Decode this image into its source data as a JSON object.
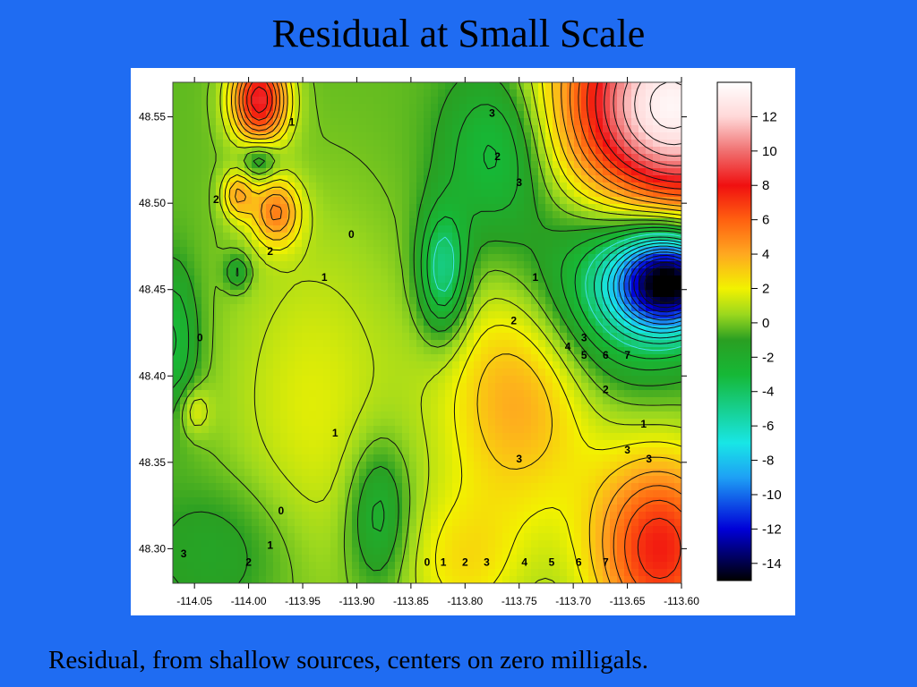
{
  "slide": {
    "title": "Residual at Small Scale",
    "caption": "Residual, from shallow sources, centers on zero milligals."
  },
  "chart_data": {
    "type": "heatmap",
    "title": "",
    "xlabel": "",
    "ylabel": "",
    "xlim": [
      -114.07,
      -113.6
    ],
    "ylim": [
      48.28,
      48.57
    ],
    "x_ticks": [
      -114.05,
      -114.0,
      -113.95,
      -113.9,
      -113.85,
      -113.8,
      -113.75,
      -113.7,
      -113.65,
      -113.6
    ],
    "x_tick_labels": [
      "-114.05",
      "-114.00",
      "-113.95",
      "-113.90",
      "-113.85",
      "-113.80",
      "-113.75",
      "-113.70",
      "-113.65",
      "-113.60"
    ],
    "y_ticks": [
      48.3,
      48.35,
      48.4,
      48.45,
      48.5,
      48.55
    ],
    "y_tick_labels": [
      "48.30",
      "48.35",
      "48.40",
      "48.45",
      "48.50",
      "48.55"
    ],
    "colorbar": {
      "min": -15,
      "max": 14,
      "ticks": [
        12,
        10,
        8,
        6,
        4,
        2,
        0,
        -2,
        -4,
        -6,
        -8,
        -10,
        -12,
        -14
      ],
      "tick_labels": [
        "12",
        "10",
        "8",
        "6",
        "4",
        "2",
        "0",
        "-2",
        "-4",
        "-6",
        "-8",
        "-10",
        "-12",
        "-14"
      ],
      "colors": [
        {
          "v": -15,
          "c": "#000000"
        },
        {
          "v": -12,
          "c": "#0000d8"
        },
        {
          "v": -9,
          "c": "#1ea0f5"
        },
        {
          "v": -7,
          "c": "#18e6e6"
        },
        {
          "v": -3,
          "c": "#16b836"
        },
        {
          "v": -1,
          "c": "#2a9f22"
        },
        {
          "v": 0.5,
          "c": "#9cd81e"
        },
        {
          "v": 2,
          "c": "#f2f200"
        },
        {
          "v": 4,
          "c": "#ffa820"
        },
        {
          "v": 6,
          "c": "#ff6010"
        },
        {
          "v": 8,
          "c": "#f01010"
        },
        {
          "v": 10,
          "c": "#f07070"
        },
        {
          "v": 12,
          "c": "#ffd8d8"
        },
        {
          "v": 14,
          "c": "#ffffff"
        }
      ]
    },
    "anomalies": [
      {
        "x": -113.99,
        "y": 48.56,
        "value": 9,
        "rx": 0.018,
        "ry": 0.018
      },
      {
        "x": -113.975,
        "y": 48.495,
        "value": 5,
        "rx": 0.016,
        "ry": 0.014
      },
      {
        "x": -114.01,
        "y": 48.505,
        "value": 4,
        "rx": 0.01,
        "ry": 0.01
      },
      {
        "x": -113.99,
        "y": 48.525,
        "value": -3,
        "rx": 0.012,
        "ry": 0.008
      },
      {
        "x": -114.01,
        "y": 48.46,
        "value": -2.5,
        "rx": 0.008,
        "ry": 0.007
      },
      {
        "x": -113.77,
        "y": 48.53,
        "value": -3.5,
        "rx": 0.034,
        "ry": 0.034
      },
      {
        "x": -113.61,
        "y": 48.555,
        "value": 14,
        "rx": 0.07,
        "ry": 0.05
      },
      {
        "x": -113.61,
        "y": 48.455,
        "value": -14,
        "rx": 0.035,
        "ry": 0.02
      },
      {
        "x": -113.66,
        "y": 48.455,
        "value": -5,
        "rx": 0.06,
        "ry": 0.04
      },
      {
        "x": -113.75,
        "y": 48.39,
        "value": 4.5,
        "rx": 0.05,
        "ry": 0.05
      },
      {
        "x": -113.62,
        "y": 48.3,
        "value": 8,
        "rx": 0.045,
        "ry": 0.04
      },
      {
        "x": -113.82,
        "y": 48.46,
        "value": -5,
        "rx": 0.016,
        "ry": 0.026
      },
      {
        "x": -113.88,
        "y": 48.32,
        "value": -3,
        "rx": 0.02,
        "ry": 0.03
      },
      {
        "x": -114.07,
        "y": 48.42,
        "value": -3,
        "rx": 0.016,
        "ry": 0.03
      },
      {
        "x": -114.05,
        "y": 48.38,
        "value": 2,
        "rx": 0.01,
        "ry": 0.01
      },
      {
        "x": -113.94,
        "y": 48.38,
        "value": 2,
        "rx": 0.06,
        "ry": 0.08
      },
      {
        "x": -114.02,
        "y": 48.3,
        "value": -1.5,
        "rx": 0.05,
        "ry": 0.03
      },
      {
        "x": -113.8,
        "y": 48.29,
        "value": 2.5,
        "rx": 0.04,
        "ry": 0.03
      }
    ],
    "contour_labels": [
      {
        "text": "0",
        "x": -113.905,
        "y": 48.48
      },
      {
        "text": "1",
        "x": -113.93,
        "y": 48.455
      },
      {
        "text": "2",
        "x": -113.98,
        "y": 48.47
      },
      {
        "text": "0",
        "x": -114.045,
        "y": 48.42
      },
      {
        "text": "1",
        "x": -113.92,
        "y": 48.365
      },
      {
        "text": "0",
        "x": -113.97,
        "y": 48.32
      },
      {
        "text": "1",
        "x": -113.98,
        "y": 48.3
      },
      {
        "text": "2",
        "x": -114.0,
        "y": 48.29
      },
      {
        "text": "3",
        "x": -114.06,
        "y": 48.295
      },
      {
        "text": "2",
        "x": -113.755,
        "y": 48.43
      },
      {
        "text": "1",
        "x": -113.735,
        "y": 48.455
      },
      {
        "text": "4",
        "x": -113.705,
        "y": 48.415
      },
      {
        "text": "5",
        "x": -113.69,
        "y": 48.41
      },
      {
        "text": "6",
        "x": -113.67,
        "y": 48.41
      },
      {
        "text": "7",
        "x": -113.65,
        "y": 48.41
      },
      {
        "text": "3",
        "x": -113.69,
        "y": 48.42
      },
      {
        "text": "2",
        "x": -113.67,
        "y": 48.39
      },
      {
        "text": "3",
        "x": -113.75,
        "y": 48.35
      },
      {
        "text": "3",
        "x": -113.65,
        "y": 48.355
      },
      {
        "text": "3",
        "x": -113.63,
        "y": 48.35
      },
      {
        "text": "0",
        "x": -113.835,
        "y": 48.29
      },
      {
        "text": "1",
        "x": -113.82,
        "y": 48.29
      },
      {
        "text": "2",
        "x": -113.8,
        "y": 48.29
      },
      {
        "text": "3",
        "x": -113.78,
        "y": 48.29
      },
      {
        "text": "4",
        "x": -113.745,
        "y": 48.29
      },
      {
        "text": "5",
        "x": -113.72,
        "y": 48.29
      },
      {
        "text": "6",
        "x": -113.695,
        "y": 48.29
      },
      {
        "text": "7",
        "x": -113.67,
        "y": 48.29
      },
      {
        "text": "1",
        "x": -113.635,
        "y": 48.37
      },
      {
        "text": "3",
        "x": -113.775,
        "y": 48.55
      },
      {
        "text": "2",
        "x": -113.77,
        "y": 48.525
      },
      {
        "text": "3",
        "x": -113.75,
        "y": 48.51
      },
      {
        "text": "1",
        "x": -113.96,
        "y": 48.545
      },
      {
        "text": "2",
        "x": -114.03,
        "y": 48.5
      }
    ]
  }
}
